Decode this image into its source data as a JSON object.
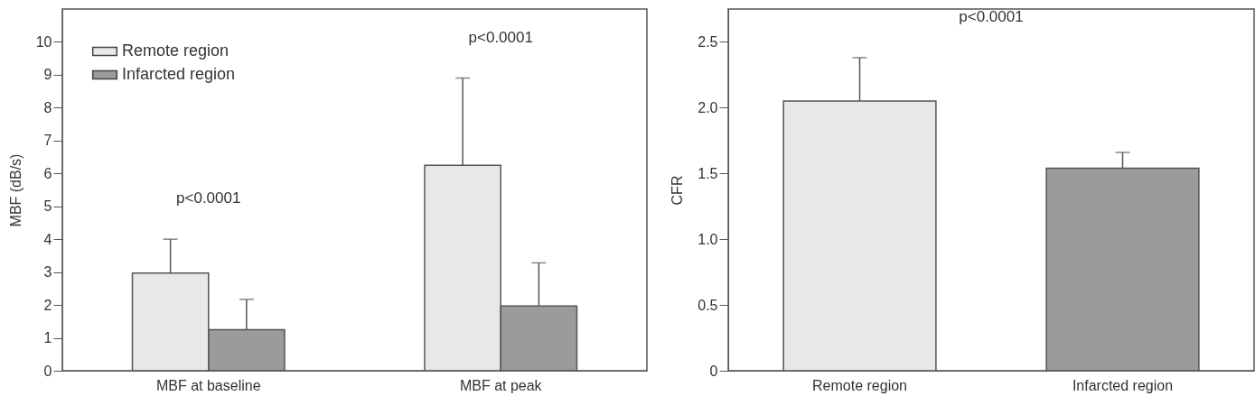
{
  "chart_data": [
    {
      "type": "bar",
      "ylabel": "MBF (dB/s)",
      "categories": [
        "MBF at baseline",
        "MBF at peak"
      ],
      "series": [
        {
          "name": "Remote region",
          "color": "#e8e8e8",
          "values": [
            2.97,
            6.25
          ],
          "errors": [
            [
              2.97,
              4.0
            ],
            [
              6.25,
              8.9
            ]
          ]
        },
        {
          "name": "Infarcted region",
          "color": "#9a9b9d",
          "values": [
            1.25,
            1.97
          ],
          "errors": [
            [
              1.25,
              2.17
            ],
            [
              1.97,
              3.28
            ]
          ]
        }
      ],
      "ylim": [
        0,
        11
      ],
      "yticks": [
        0,
        1,
        2,
        3,
        4,
        5,
        6,
        7,
        8,
        9,
        10
      ],
      "legend": "top left",
      "annotations": [
        "p<0.0001",
        "p<0.0001"
      ]
    },
    {
      "type": "bar",
      "ylabel": "CFR",
      "categories": [
        "Remote region",
        "Infarcted region"
      ],
      "values": [
        2.05,
        1.54
      ],
      "colors": [
        "#e8e8e8",
        "#9a9b9d"
      ],
      "errors": [
        [
          2.05,
          2.38
        ],
        [
          1.54,
          1.66
        ]
      ],
      "ylim": [
        0,
        2.75
      ],
      "yticks": [
        0,
        {
          "value": 0.5,
          "label": "0.5"
        },
        {
          "value": 1,
          "label": "1.0"
        },
        {
          "value": 1.5,
          "label": "1.5"
        },
        {
          "value": 2,
          "label": "2.0"
        },
        {
          "value": 2.5,
          "label": "2.5"
        }
      ],
      "annotations": [
        "p<0.0001"
      ]
    }
  ]
}
